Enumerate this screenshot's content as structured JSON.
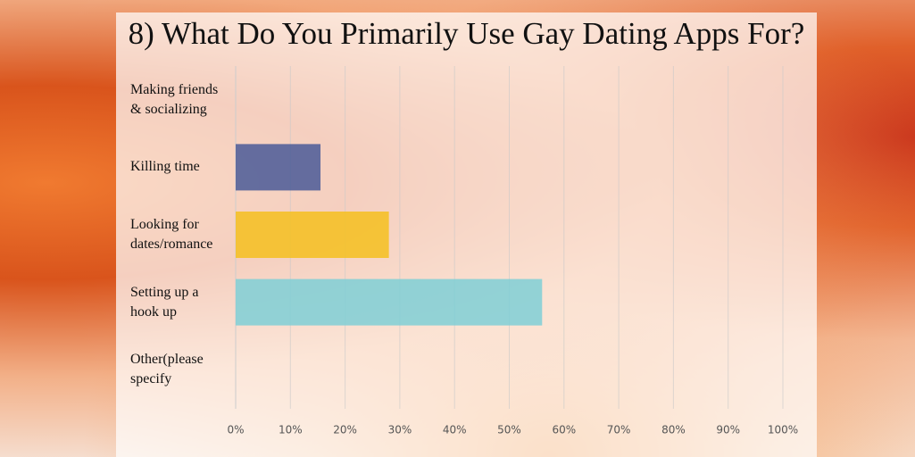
{
  "chart_data": {
    "type": "hbar",
    "title": "8) What Do You Primarily Use Gay Dating Apps For?",
    "categories": [
      "Making friends & socializing",
      "Killing time",
      "Looking for dates/romance",
      "Setting up a hook up",
      "Other(please specify"
    ],
    "values": [
      0,
      15.5,
      28,
      56,
      0
    ],
    "colors": [
      "#6a9a50",
      "#4a5a98",
      "#f5bf1e",
      "#7fcfd6",
      "#b0b0b0"
    ],
    "xlim": [
      0,
      100
    ],
    "xticks": [
      {
        "value": 0,
        "label": "0%"
      },
      {
        "value": 10,
        "label": "10%"
      },
      {
        "value": 20,
        "label": "20%"
      },
      {
        "value": 30,
        "label": "30%"
      },
      {
        "value": 40,
        "label": "40%"
      },
      {
        "value": 50,
        "label": "50%"
      },
      {
        "value": 60,
        "label": "60%"
      },
      {
        "value": 70,
        "label": "70%"
      },
      {
        "value": 80,
        "label": "80%"
      },
      {
        "value": 90,
        "label": "90%"
      },
      {
        "value": 100,
        "label": "100%"
      }
    ],
    "grid": true
  }
}
